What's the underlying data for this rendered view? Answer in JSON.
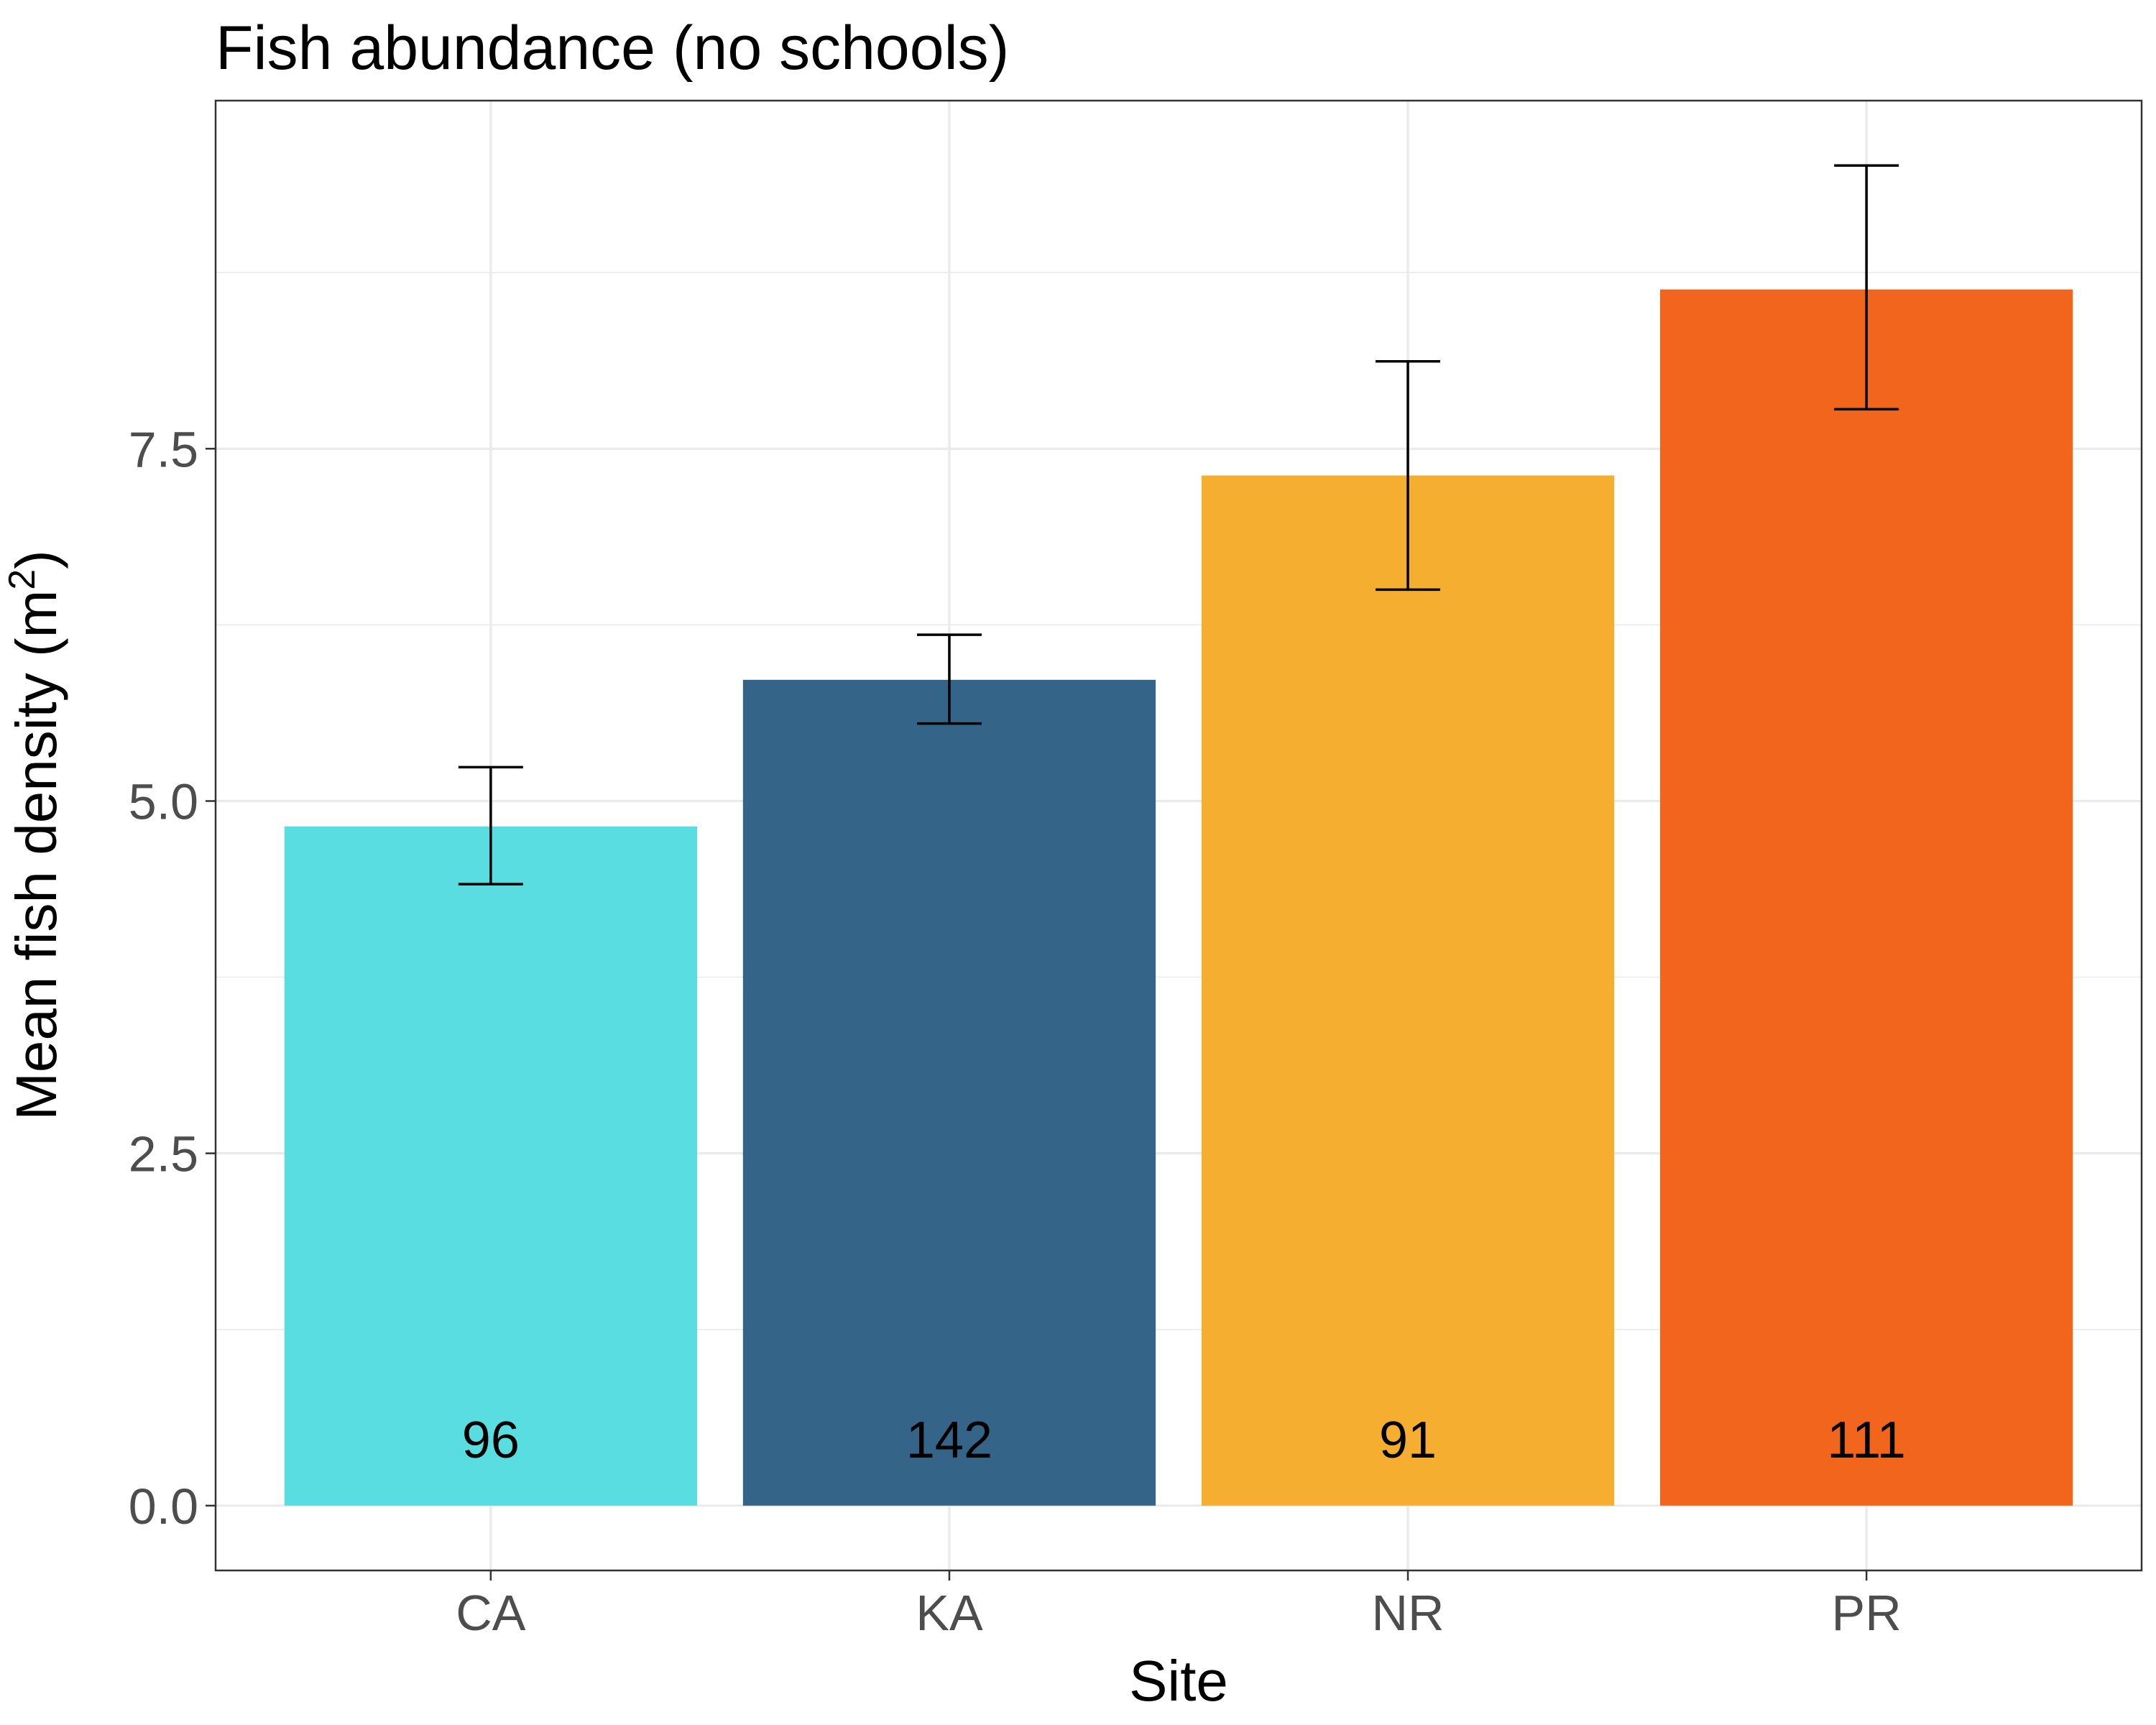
{
  "chart_data": {
    "type": "bar",
    "title": "Fish abundance (no schools)",
    "xlabel": "Site",
    "ylabel_main": "Mean fish density (m",
    "ylabel_sup": "2",
    "ylabel_close": ")",
    "categories": [
      "CA",
      "KA",
      "NR",
      "PR"
    ],
    "values": [
      4.82,
      5.86,
      7.31,
      8.63
    ],
    "error_low": [
      4.41,
      5.55,
      6.5,
      7.78
    ],
    "error_high": [
      5.24,
      6.18,
      8.12,
      9.51
    ],
    "counts": [
      "96",
      "142",
      "91",
      "111"
    ],
    "colors": [
      "#5adde0",
      "#346589",
      "#f5ae2f",
      "#f2651c"
    ],
    "yticks": [
      0.0,
      2.5,
      5.0,
      7.5
    ],
    "ytick_labels": [
      "0.0",
      "2.5",
      "5.0",
      "7.5"
    ],
    "ylim": [
      -0.46,
      9.97
    ],
    "grid": true
  }
}
